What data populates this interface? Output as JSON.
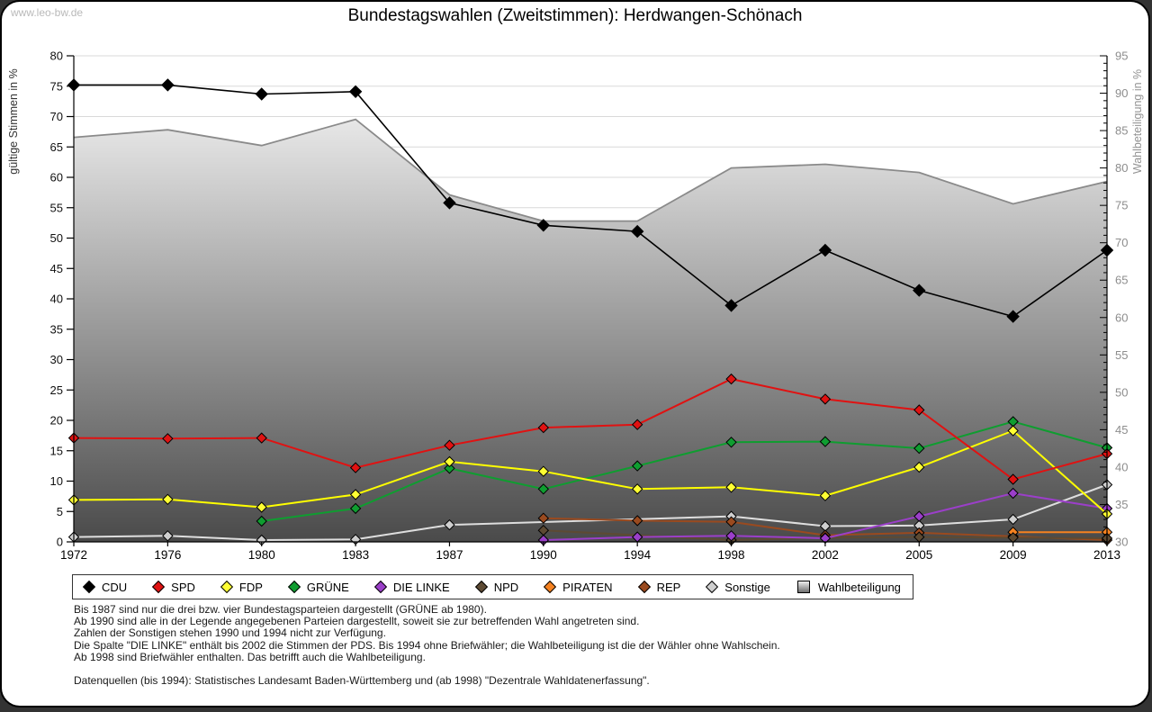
{
  "page": {
    "watermark": "www.leo-bw.de",
    "title": "Bundestagswahlen (Zweitstimmen): Herdwangen-Schönach"
  },
  "chart_data": {
    "type": "line",
    "title": "Bundestagswahlen (Zweitstimmen): Herdwangen-Schönach",
    "x_categories": [
      "1972",
      "1976",
      "1980",
      "1983",
      "1987",
      "1990",
      "1994",
      "1998",
      "2002",
      "2005",
      "2009",
      "2013"
    ],
    "y_left": {
      "label": "gültige Stimmen in %",
      "min": 0,
      "max": 80,
      "step": 5
    },
    "y_right": {
      "label": "Wahlbeteiligung in %",
      "min": 30,
      "max": 95,
      "step": 5,
      "minor_step": 1
    },
    "grid": true,
    "legend_position": "bottom",
    "colors": {
      "grid": "#d9d9d9",
      "axis": "#000000",
      "area_top": "#ffffff",
      "area_bottom": "#4a4a4a",
      "legend_swatch_top": "#ededed",
      "legend_swatch_bottom": "#6e6e6e"
    },
    "series": [
      {
        "name": "CDU",
        "axis": "left",
        "color": "#000000",
        "marker_fill": "#000000",
        "values": [
          75.2,
          75.2,
          73.7,
          74.1,
          55.8,
          52.1,
          51.1,
          38.9,
          48.0,
          41.4,
          37.1,
          48.0
        ]
      },
      {
        "name": "SPD",
        "axis": "left",
        "color": "#e01212",
        "marker_fill": "#e01212",
        "values": [
          17.1,
          17.0,
          17.1,
          12.2,
          15.9,
          18.8,
          19.3,
          26.8,
          23.5,
          21.7,
          10.3,
          14.5
        ]
      },
      {
        "name": "FDP",
        "axis": "left",
        "color": "#ffff00",
        "marker_fill": "#ffff33",
        "values": [
          6.9,
          7.0,
          5.7,
          7.8,
          13.2,
          11.6,
          8.7,
          9.0,
          7.6,
          12.3,
          18.3,
          4.6
        ]
      },
      {
        "name": "GRÜNE",
        "axis": "left",
        "color": "#0f9d30",
        "marker_fill": "#0f9d30",
        "values": [
          null,
          null,
          3.4,
          5.5,
          12.1,
          8.7,
          12.5,
          16.4,
          16.5,
          15.4,
          19.8,
          15.5
        ]
      },
      {
        "name": "DIE LINKE",
        "axis": "left",
        "color": "#9b3fc9",
        "marker_fill": "#9b3fc9",
        "values": [
          null,
          null,
          null,
          null,
          null,
          0.3,
          0.8,
          1.0,
          0.6,
          4.2,
          8.0,
          5.5
        ]
      },
      {
        "name": "NPD",
        "axis": "left",
        "color": "#5d4a33",
        "marker_fill": "#5d4a33",
        "values": [
          null,
          null,
          null,
          null,
          null,
          1.9,
          null,
          0.3,
          0.7,
          0.8,
          0.7,
          0.6
        ]
      },
      {
        "name": "PIRATEN",
        "axis": "left",
        "color": "#f58220",
        "marker_fill": "#f58220",
        "values": [
          null,
          null,
          null,
          null,
          null,
          null,
          null,
          null,
          null,
          null,
          1.6,
          1.6
        ]
      },
      {
        "name": "REP",
        "axis": "left",
        "color": "#9a4a1f",
        "marker_fill": "#9a4a1f",
        "values": [
          null,
          null,
          null,
          null,
          null,
          3.9,
          3.5,
          3.3,
          1.1,
          1.5,
          0.9,
          0.3
        ]
      },
      {
        "name": "Sonstige",
        "axis": "left",
        "color": "#dedede",
        "marker_fill": "#cfcfcf",
        "values": [
          0.8,
          1.0,
          0.3,
          0.4,
          2.8,
          null,
          null,
          4.2,
          2.6,
          2.7,
          3.7,
          9.4
        ]
      },
      {
        "name": "Wahlbeteiligung",
        "axis": "right",
        "color": "#8a8a8a",
        "type": "area",
        "values": [
          84.1,
          85.1,
          83.0,
          86.5,
          76.4,
          72.9,
          72.9,
          80.0,
          80.5,
          79.4,
          75.2,
          78.2
        ]
      }
    ]
  },
  "footnotes": [
    "Bis 1987 sind nur die drei bzw. vier Bundestagsparteien dargestellt (GRÜNE ab 1980).",
    "Ab 1990 sind alle in der Legende angegebenen Parteien dargestellt, soweit sie zur betreffenden Wahl angetreten sind.",
    "Zahlen der Sonstigen stehen 1990 und 1994 nicht zur Verfügung.",
    "Die Spalte \"DIE LINKE\" enthält bis 2002 die Stimmen der PDS. Bis 1994 ohne Briefwähler; die Wahlbeteiligung ist die der Wähler ohne Wahlschein.",
    "Ab 1998 sind Briefwähler enthalten. Das betrifft auch die Wahlbeteiligung."
  ],
  "source_line": "Datenquellen (bis 1994): Statistisches Landesamt Baden-Württemberg und (ab 1998) \"Dezentrale Wahldatenerfassung\"."
}
